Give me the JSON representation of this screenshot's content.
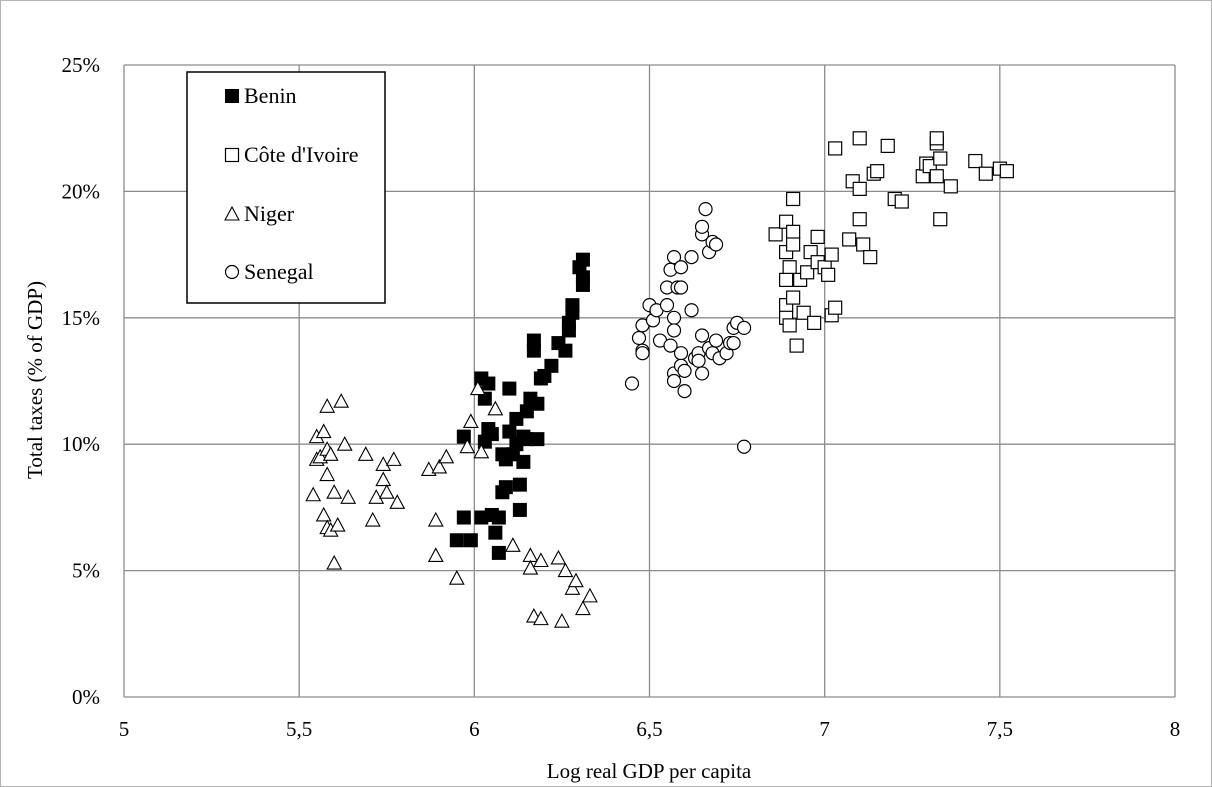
{
  "chart_data": {
    "type": "scatter",
    "xlabel": "Log real GDP per capita",
    "ylabel": "Total taxes (% of GDP)",
    "xlim": [
      5,
      8
    ],
    "ylim": [
      0,
      0.25
    ],
    "x_ticks": [
      5,
      5.5,
      6,
      6.5,
      7,
      7.5,
      8
    ],
    "x_tick_labels": [
      "5",
      "5,5",
      "6",
      "6,5",
      "7",
      "7,5",
      "8"
    ],
    "y_ticks": [
      0,
      0.05,
      0.1,
      0.15,
      0.2,
      0.25
    ],
    "y_tick_labels": [
      "0%",
      "5%",
      "10%",
      "15%",
      "20%",
      "25%"
    ],
    "grid": true,
    "legend_position": "top-left",
    "series": [
      {
        "name": "Benin",
        "marker": "filled-square",
        "color": "#000000",
        "points": [
          [
            5.97,
            0.103
          ],
          [
            5.97,
            0.071
          ],
          [
            5.99,
            0.062
          ],
          [
            5.95,
            0.062
          ],
          [
            6.02,
            0.126
          ],
          [
            6.03,
            0.118
          ],
          [
            6.04,
            0.124
          ],
          [
            6.03,
            0.101
          ],
          [
            6.04,
            0.106
          ],
          [
            6.05,
            0.104
          ],
          [
            6.05,
            0.072
          ],
          [
            6.02,
            0.071
          ],
          [
            6.06,
            0.065
          ],
          [
            6.07,
            0.057
          ],
          [
            6.07,
            0.071
          ],
          [
            6.08,
            0.081
          ],
          [
            6.08,
            0.096
          ],
          [
            6.09,
            0.083
          ],
          [
            6.09,
            0.094
          ],
          [
            6.1,
            0.122
          ],
          [
            6.1,
            0.105
          ],
          [
            6.11,
            0.096
          ],
          [
            6.12,
            0.11
          ],
          [
            6.12,
            0.1
          ],
          [
            6.13,
            0.074
          ],
          [
            6.13,
            0.084
          ],
          [
            6.14,
            0.093
          ],
          [
            6.14,
            0.103
          ],
          [
            6.15,
            0.102
          ],
          [
            6.15,
            0.113
          ],
          [
            6.16,
            0.118
          ],
          [
            6.17,
            0.141
          ],
          [
            6.17,
            0.137
          ],
          [
            6.18,
            0.116
          ],
          [
            6.18,
            0.102
          ],
          [
            6.19,
            0.126
          ],
          [
            6.2,
            0.127
          ],
          [
            6.22,
            0.131
          ],
          [
            6.24,
            0.14
          ],
          [
            6.26,
            0.137
          ],
          [
            6.27,
            0.145
          ],
          [
            6.27,
            0.148
          ],
          [
            6.28,
            0.152
          ],
          [
            6.28,
            0.155
          ],
          [
            6.3,
            0.17
          ],
          [
            6.31,
            0.173
          ],
          [
            6.31,
            0.166
          ],
          [
            6.31,
            0.163
          ]
        ]
      },
      {
        "name": "Côte d'Ivoire",
        "marker": "open-square",
        "color": "#000000",
        "points": [
          [
            6.86,
            0.183
          ],
          [
            6.89,
            0.188
          ],
          [
            6.89,
            0.176
          ],
          [
            6.9,
            0.17
          ],
          [
            6.91,
            0.197
          ],
          [
            6.91,
            0.184
          ],
          [
            6.91,
            0.179
          ],
          [
            6.89,
            0.165
          ],
          [
            6.89,
            0.155
          ],
          [
            6.89,
            0.15
          ],
          [
            6.9,
            0.147
          ],
          [
            6.91,
            0.158
          ],
          [
            6.92,
            0.139
          ],
          [
            6.93,
            0.165
          ],
          [
            6.94,
            0.152
          ],
          [
            6.95,
            0.168
          ],
          [
            6.96,
            0.176
          ],
          [
            6.97,
            0.148
          ],
          [
            6.98,
            0.182
          ],
          [
            6.98,
            0.172
          ],
          [
            7.0,
            0.17
          ],
          [
            7.01,
            0.167
          ],
          [
            7.02,
            0.175
          ],
          [
            7.02,
            0.151
          ],
          [
            7.03,
            0.154
          ],
          [
            7.03,
            0.217
          ],
          [
            7.07,
            0.181
          ],
          [
            7.08,
            0.204
          ],
          [
            7.1,
            0.221
          ],
          [
            7.1,
            0.201
          ],
          [
            7.1,
            0.189
          ],
          [
            7.11,
            0.179
          ],
          [
            7.13,
            0.174
          ],
          [
            7.14,
            0.207
          ],
          [
            7.15,
            0.208
          ],
          [
            7.18,
            0.218
          ],
          [
            7.2,
            0.197
          ],
          [
            7.22,
            0.196
          ],
          [
            7.28,
            0.206
          ],
          [
            7.29,
            0.211
          ],
          [
            7.3,
            0.21
          ],
          [
            7.32,
            0.219
          ],
          [
            7.32,
            0.221
          ],
          [
            7.32,
            0.206
          ],
          [
            7.33,
            0.189
          ],
          [
            7.33,
            0.213
          ],
          [
            7.36,
            0.202
          ],
          [
            7.43,
            0.212
          ],
          [
            7.46,
            0.207
          ],
          [
            7.5,
            0.209
          ],
          [
            7.52,
            0.208
          ]
        ]
      },
      {
        "name": "Niger",
        "marker": "open-triangle",
        "color": "#000000",
        "points": [
          [
            5.54,
            0.08
          ],
          [
            5.55,
            0.103
          ],
          [
            5.55,
            0.094
          ],
          [
            5.56,
            0.095
          ],
          [
            5.57,
            0.105
          ],
          [
            5.57,
            0.072
          ],
          [
            5.58,
            0.088
          ],
          [
            5.58,
            0.067
          ],
          [
            5.58,
            0.098
          ],
          [
            5.58,
            0.115
          ],
          [
            5.59,
            0.066
          ],
          [
            5.59,
            0.096
          ],
          [
            5.6,
            0.081
          ],
          [
            5.6,
            0.053
          ],
          [
            5.61,
            0.068
          ],
          [
            5.62,
            0.117
          ],
          [
            5.63,
            0.1
          ],
          [
            5.64,
            0.079
          ],
          [
            5.69,
            0.096
          ],
          [
            5.71,
            0.07
          ],
          [
            5.72,
            0.079
          ],
          [
            5.74,
            0.092
          ],
          [
            5.74,
            0.086
          ],
          [
            5.75,
            0.081
          ],
          [
            5.77,
            0.094
          ],
          [
            5.78,
            0.077
          ],
          [
            5.87,
            0.09
          ],
          [
            5.89,
            0.07
          ],
          [
            5.89,
            0.056
          ],
          [
            5.9,
            0.091
          ],
          [
            5.92,
            0.095
          ],
          [
            5.95,
            0.047
          ],
          [
            5.98,
            0.099
          ],
          [
            5.99,
            0.109
          ],
          [
            6.01,
            0.122
          ],
          [
            6.02,
            0.097
          ],
          [
            6.06,
            0.114
          ],
          [
            6.11,
            0.06
          ],
          [
            6.16,
            0.056
          ],
          [
            6.16,
            0.051
          ],
          [
            6.17,
            0.032
          ],
          [
            6.19,
            0.054
          ],
          [
            6.19,
            0.031
          ],
          [
            6.24,
            0.055
          ],
          [
            6.25,
            0.03
          ],
          [
            6.26,
            0.05
          ],
          [
            6.28,
            0.043
          ],
          [
            6.29,
            0.046
          ],
          [
            6.31,
            0.035
          ],
          [
            6.33,
            0.04
          ]
        ]
      },
      {
        "name": "Senegal",
        "marker": "open-circle",
        "color": "#000000",
        "points": [
          [
            6.45,
            0.124
          ],
          [
            6.47,
            0.142
          ],
          [
            6.48,
            0.147
          ],
          [
            6.48,
            0.137
          ],
          [
            6.48,
            0.136
          ],
          [
            6.5,
            0.155
          ],
          [
            6.51,
            0.149
          ],
          [
            6.52,
            0.153
          ],
          [
            6.53,
            0.141
          ],
          [
            6.55,
            0.155
          ],
          [
            6.55,
            0.162
          ],
          [
            6.56,
            0.139
          ],
          [
            6.56,
            0.169
          ],
          [
            6.57,
            0.174
          ],
          [
            6.57,
            0.15
          ],
          [
            6.57,
            0.145
          ],
          [
            6.57,
            0.128
          ],
          [
            6.57,
            0.125
          ],
          [
            6.58,
            0.162
          ],
          [
            6.59,
            0.162
          ],
          [
            6.59,
            0.17
          ],
          [
            6.59,
            0.136
          ],
          [
            6.59,
            0.131
          ],
          [
            6.6,
            0.129
          ],
          [
            6.6,
            0.121
          ],
          [
            6.62,
            0.174
          ],
          [
            6.62,
            0.153
          ],
          [
            6.63,
            0.134
          ],
          [
            6.64,
            0.136
          ],
          [
            6.64,
            0.133
          ],
          [
            6.65,
            0.183
          ],
          [
            6.65,
            0.186
          ],
          [
            6.65,
            0.143
          ],
          [
            6.65,
            0.128
          ],
          [
            6.66,
            0.193
          ],
          [
            6.67,
            0.176
          ],
          [
            6.67,
            0.138
          ],
          [
            6.68,
            0.18
          ],
          [
            6.68,
            0.136
          ],
          [
            6.69,
            0.179
          ],
          [
            6.69,
            0.141
          ],
          [
            6.7,
            0.134
          ],
          [
            6.72,
            0.136
          ],
          [
            6.73,
            0.14
          ],
          [
            6.74,
            0.146
          ],
          [
            6.74,
            0.14
          ],
          [
            6.75,
            0.148
          ],
          [
            6.77,
            0.146
          ],
          [
            6.77,
            0.099
          ]
        ]
      }
    ]
  }
}
